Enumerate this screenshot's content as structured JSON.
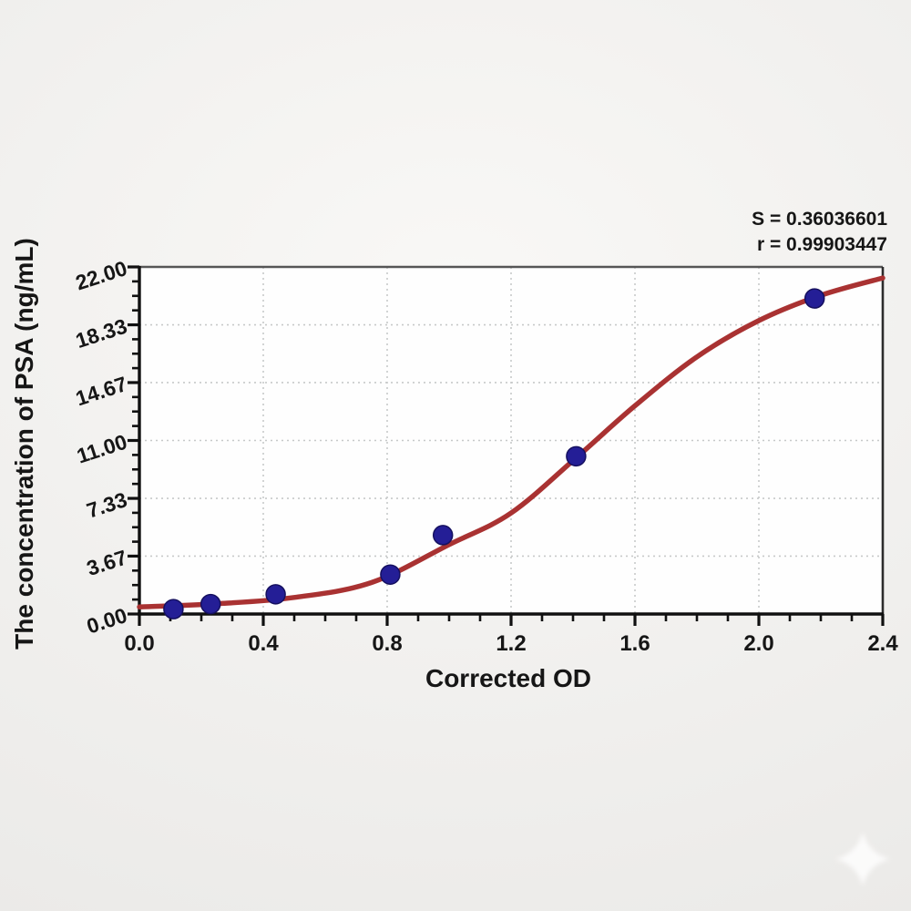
{
  "annotation": {
    "line1": "S = 0.36036601",
    "line2": "r = 0.99903447"
  },
  "chart_data": {
    "type": "scatter",
    "title": "",
    "xlabel": "Corrected OD",
    "ylabel": "The concentration of PSA (ng/mL)",
    "xlim": [
      0.0,
      2.4
    ],
    "ylim": [
      0.0,
      22.0
    ],
    "x_major_ticks": [
      0.0,
      0.4,
      0.8,
      1.2,
      1.6,
      2.0,
      2.4
    ],
    "x_tick_labels": [
      "0.0",
      "0.4",
      "0.8",
      "1.2",
      "1.6",
      "2.0",
      "2.4"
    ],
    "x_minor_step": 0.1,
    "y_major_ticks": [
      0.0,
      3.67,
      7.33,
      11.0,
      14.67,
      18.33,
      22.0
    ],
    "y_tick_labels": [
      "0.00",
      "3.67",
      "7.33",
      "11.00",
      "14.67",
      "18.33",
      "22.00"
    ],
    "y_minor_divisions_per_major": 4,
    "grid": "dotted gridlines at interior major ticks, both axes",
    "legend": "none",
    "series": [
      {
        "name": "standard-points",
        "type": "scatter",
        "points": [
          {
            "x": 0.11,
            "y": 0.31
          },
          {
            "x": 0.23,
            "y": 0.63
          },
          {
            "x": 0.44,
            "y": 1.25
          },
          {
            "x": 0.81,
            "y": 2.5
          },
          {
            "x": 0.98,
            "y": 5.0
          },
          {
            "x": 1.41,
            "y": 10.0
          },
          {
            "x": 2.18,
            "y": 20.0
          }
        ]
      },
      {
        "name": "fit-curve",
        "type": "line",
        "samples": [
          {
            "x": 0.0,
            "y": 0.45
          },
          {
            "x": 0.25,
            "y": 0.65
          },
          {
            "x": 0.5,
            "y": 1.05
          },
          {
            "x": 0.75,
            "y": 2.0
          },
          {
            "x": 1.0,
            "y": 4.4
          },
          {
            "x": 1.2,
            "y": 6.4
          },
          {
            "x": 1.41,
            "y": 9.9
          },
          {
            "x": 1.6,
            "y": 13.2
          },
          {
            "x": 1.8,
            "y": 16.3
          },
          {
            "x": 2.0,
            "y": 18.6
          },
          {
            "x": 2.2,
            "y": 20.2
          },
          {
            "x": 2.4,
            "y": 21.3
          }
        ]
      }
    ],
    "stats": {
      "S": "0.36036601",
      "r": "0.99903447"
    }
  },
  "colors": {
    "curve_red": "#a93232",
    "point_navy": "#241e96",
    "point_edge": "#15105f",
    "grid_gray": "#c7c9c9",
    "axis_black": "#101010",
    "frame_top": "#565656",
    "frame_right": "#2c2c2c",
    "text": "#161616",
    "plot_background": "#fefefe",
    "page_background": "#f1f0ee"
  },
  "watermark": {
    "icon": "four-point-star-sparkle",
    "color": "#ffffff"
  }
}
